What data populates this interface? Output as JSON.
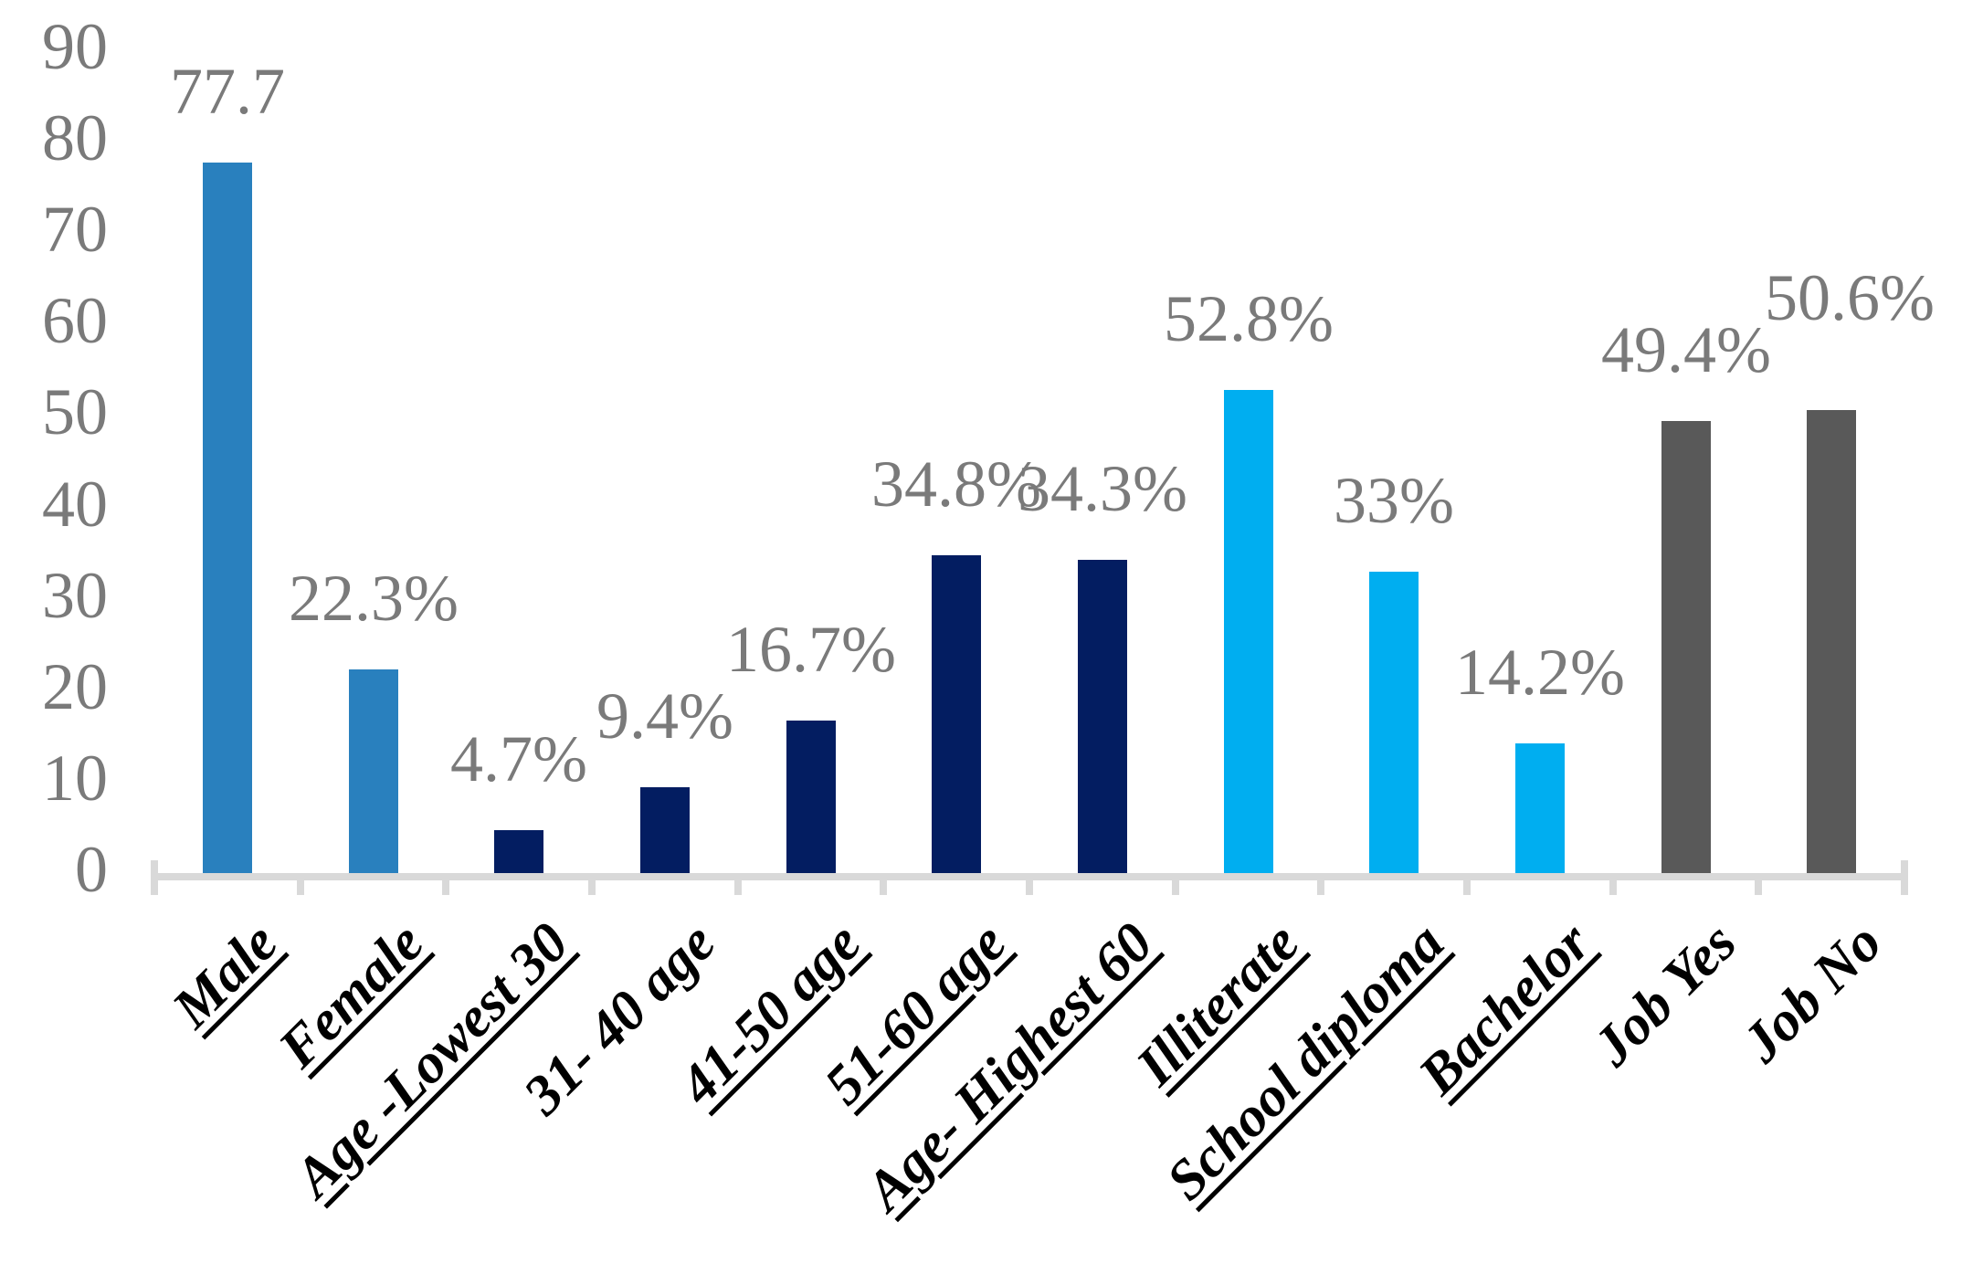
{
  "chart_data": {
    "type": "bar",
    "title": "",
    "xlabel": "",
    "ylabel": "",
    "categories": [
      "Male",
      "Female",
      "Age -Lowest 30",
      "31- 40 age",
      "41-50 age",
      "51-60 age",
      "Age- Highest 60",
      "Illiterate",
      "School diploma",
      "Bachelor",
      "Job Yes",
      "Job No"
    ],
    "values": [
      77.7,
      22.3,
      4.7,
      9.4,
      16.7,
      34.8,
      34.3,
      52.8,
      33,
      14.2,
      49.4,
      50.6
    ],
    "data_labels": [
      "77.7",
      "22.3%",
      "4.7%",
      "9.4%",
      "16.7%",
      "34.8%",
      "34.3%",
      "52.8%",
      "33%",
      "14.2%",
      "49.4%",
      "50.6%"
    ],
    "bar_color_keys": [
      "steel_blue",
      "steel_blue",
      "navy",
      "navy",
      "navy",
      "navy",
      "navy",
      "light_blue",
      "light_blue",
      "light_blue",
      "dark_gray",
      "dark_gray"
    ],
    "category_underline": [
      true,
      true,
      true,
      false,
      true,
      true,
      true,
      true,
      true,
      true,
      false,
      false
    ],
    "ylim": [
      0,
      90
    ],
    "yticks": [
      0,
      10,
      20,
      30,
      40,
      50,
      60,
      70,
      80,
      90
    ],
    "grid": "off",
    "legend": "none",
    "colors": {
      "steel_blue": "#2980BE",
      "navy": "#031D61",
      "light_blue": "#00AEF0",
      "dark_gray": "#595959",
      "axis_line": "#D9D9D9",
      "tick_label_text": "#7A7A7A",
      "data_label_text": "#7A7A7A",
      "category_label_text": "#000000"
    }
  }
}
